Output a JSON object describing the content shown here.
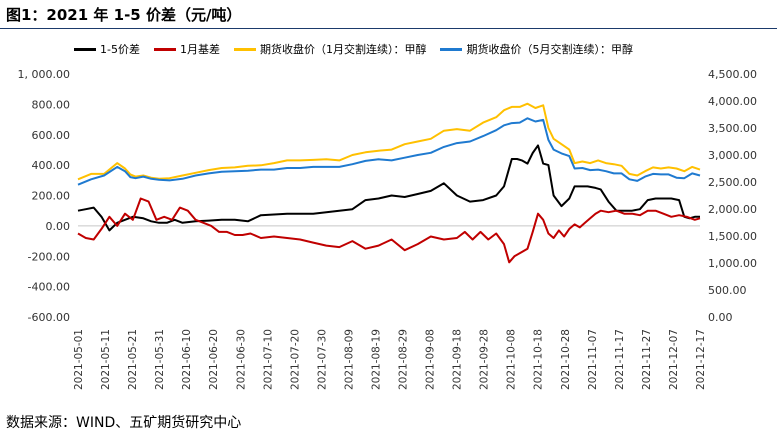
{
  "figure": {
    "title": "图1：2021 年 1-5 价差（元/吨）",
    "source": "数据来源：WIND、五矿期货研究中心"
  },
  "colors": {
    "spread": "#000000",
    "basis": "#c00000",
    "price_jan": "#ffc000",
    "price_may": "#1f7ad0"
  },
  "chart_data": {
    "type": "line",
    "x_ticks": [
      "2021-05-01",
      "2021-05-11",
      "2021-05-21",
      "2021-05-31",
      "2021-06-10",
      "2021-06-20",
      "2021-06-30",
      "2021-07-10",
      "2021-07-20",
      "2021-07-30",
      "2021-08-09",
      "2021-08-19",
      "2021-08-29",
      "2021-09-08",
      "2021-09-18",
      "2021-09-28",
      "2021-10-08",
      "2021-10-18",
      "2021-10-28",
      "2021-11-07",
      "2021-11-17",
      "2021-11-27",
      "2021-12-07",
      "2021-12-17"
    ],
    "left_axis": {
      "ylim": [
        -600,
        1000
      ],
      "ticks": [
        "-600.00",
        "-400.00",
        "-200.00",
        "0.00",
        "200.00",
        "400.00",
        "600.00",
        "800.00",
        "1, 000.00"
      ]
    },
    "right_axis": {
      "ylim": [
        0,
        4500
      ],
      "ticks": [
        "0.00",
        "500.00",
        "1,000.00",
        "1,500.00",
        "2,000.00",
        "2,500.00",
        "3,000.00",
        "3,500.00",
        "4,000.00",
        "4,500.00"
      ]
    },
    "series": [
      {
        "name": "1-5价差",
        "axis": "left",
        "color_key": "spread",
        "x": [
          0,
          3,
          6,
          9,
          12,
          15,
          18,
          21,
          25,
          28,
          31,
          34,
          37,
          40,
          45,
          50,
          55,
          60,
          65,
          70,
          75,
          80,
          85,
          90,
          95,
          100,
          105,
          110,
          115,
          120,
          125,
          130,
          135,
          140,
          145,
          150,
          155,
          160,
          163,
          166,
          168,
          170,
          172,
          174,
          176,
          178,
          180,
          182,
          185,
          188,
          190,
          192,
          195,
          198,
          200,
          203,
          206,
          209,
          212,
          215,
          218,
          221,
          224,
          227,
          230,
          232,
          234,
          236,
          238
        ],
        "y": [
          100,
          110,
          120,
          60,
          -30,
          20,
          40,
          60,
          50,
          30,
          20,
          20,
          40,
          20,
          30,
          35,
          40,
          40,
          30,
          70,
          75,
          80,
          80,
          80,
          90,
          100,
          110,
          170,
          180,
          200,
          190,
          210,
          230,
          280,
          200,
          160,
          170,
          200,
          260,
          440,
          440,
          430,
          410,
          480,
          530,
          410,
          400,
          200,
          130,
          180,
          260,
          260,
          260,
          250,
          240,
          160,
          100,
          100,
          100,
          110,
          170,
          180,
          180,
          180,
          170,
          60,
          50,
          60,
          60
        ]
      },
      {
        "name": "1月基差",
        "axis": "left",
        "color_key": "basis",
        "x": [
          0,
          3,
          6,
          9,
          12,
          15,
          18,
          21,
          24,
          27,
          30,
          33,
          36,
          39,
          42,
          45,
          48,
          51,
          54,
          57,
          60,
          63,
          66,
          70,
          75,
          80,
          85,
          90,
          95,
          100,
          105,
          110,
          115,
          120,
          125,
          130,
          135,
          140,
          145,
          148,
          151,
          154,
          157,
          160,
          163,
          165,
          167,
          170,
          172,
          174,
          176,
          178,
          180,
          182,
          184,
          186,
          188,
          190,
          192,
          194,
          196,
          198,
          200,
          203,
          206,
          209,
          212,
          215,
          218,
          221,
          224,
          227,
          230,
          233,
          236,
          238
        ],
        "y": [
          -50,
          -80,
          -90,
          -20,
          60,
          0,
          80,
          40,
          180,
          160,
          40,
          60,
          40,
          120,
          100,
          40,
          20,
          0,
          -40,
          -40,
          -60,
          -60,
          -50,
          -80,
          -70,
          -80,
          -90,
          -110,
          -130,
          -140,
          -100,
          -150,
          -130,
          -90,
          -160,
          -120,
          -70,
          -90,
          -80,
          -40,
          -90,
          -40,
          -90,
          -50,
          -120,
          -240,
          -200,
          -170,
          -150,
          -40,
          80,
          40,
          -50,
          -80,
          -30,
          -70,
          -20,
          10,
          -10,
          20,
          50,
          80,
          100,
          90,
          100,
          80,
          80,
          70,
          100,
          100,
          80,
          60,
          70,
          60,
          40,
          50
        ]
      },
      {
        "name": "期货收盘价（1月交割连续）：甲醇",
        "axis": "right",
        "color_key": "price_jan",
        "x": [
          0,
          5,
          10,
          15,
          18,
          20,
          22,
          25,
          28,
          31,
          35,
          40,
          45,
          50,
          55,
          60,
          65,
          70,
          75,
          80,
          85,
          90,
          95,
          100,
          105,
          110,
          115,
          120,
          125,
          130,
          135,
          140,
          145,
          150,
          155,
          160,
          163,
          166,
          169,
          172,
          175,
          178,
          180,
          182,
          185,
          188,
          190,
          193,
          196,
          199,
          202,
          205,
          208,
          211,
          214,
          217,
          220,
          223,
          226,
          229,
          232,
          235,
          238
        ],
        "y": [
          2550,
          2650,
          2650,
          2850,
          2750,
          2640,
          2600,
          2620,
          2580,
          2560,
          2570,
          2620,
          2670,
          2720,
          2760,
          2770,
          2800,
          2810,
          2850,
          2900,
          2900,
          2910,
          2920,
          2900,
          3000,
          3050,
          3080,
          3100,
          3200,
          3250,
          3300,
          3450,
          3480,
          3450,
          3600,
          3700,
          3830,
          3890,
          3890,
          3950,
          3870,
          3920,
          3500,
          3300,
          3200,
          3100,
          2850,
          2880,
          2850,
          2900,
          2850,
          2830,
          2800,
          2650,
          2620,
          2700,
          2770,
          2750,
          2770,
          2750,
          2700,
          2780,
          2730
        ]
      },
      {
        "name": "期货收盘价（5月交割连续）：甲醇",
        "axis": "right",
        "color_key": "price_may",
        "x": [
          0,
          5,
          10,
          15,
          18,
          20,
          22,
          25,
          28,
          31,
          35,
          40,
          45,
          50,
          55,
          60,
          65,
          70,
          75,
          80,
          85,
          90,
          95,
          100,
          105,
          110,
          115,
          120,
          125,
          130,
          135,
          140,
          145,
          150,
          155,
          160,
          163,
          166,
          169,
          172,
          175,
          178,
          180,
          182,
          185,
          188,
          190,
          193,
          196,
          199,
          202,
          205,
          208,
          211,
          214,
          217,
          220,
          223,
          226,
          229,
          232,
          235,
          238
        ],
        "y": [
          2450,
          2550,
          2620,
          2780,
          2700,
          2590,
          2570,
          2600,
          2560,
          2540,
          2530,
          2560,
          2620,
          2660,
          2690,
          2700,
          2710,
          2730,
          2730,
          2760,
          2760,
          2780,
          2780,
          2780,
          2830,
          2890,
          2920,
          2900,
          2950,
          3000,
          3040,
          3150,
          3220,
          3250,
          3350,
          3460,
          3550,
          3590,
          3600,
          3680,
          3620,
          3650,
          3280,
          3100,
          3030,
          2980,
          2750,
          2760,
          2720,
          2730,
          2700,
          2660,
          2660,
          2550,
          2520,
          2600,
          2650,
          2640,
          2640,
          2580,
          2570,
          2660,
          2620
        ]
      }
    ]
  }
}
